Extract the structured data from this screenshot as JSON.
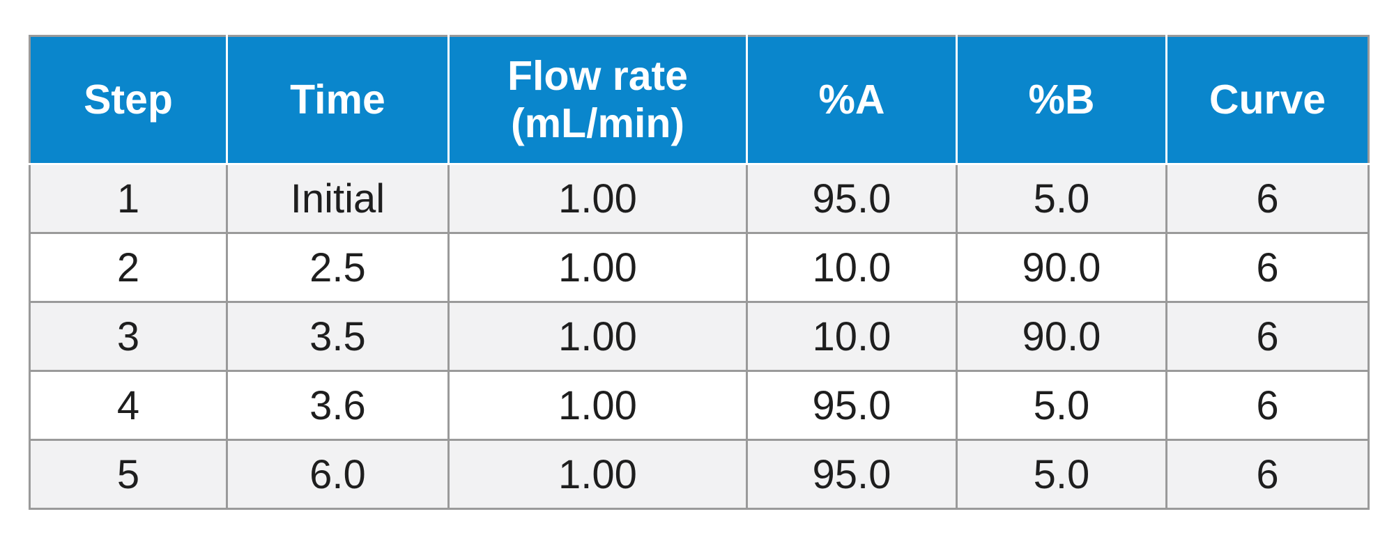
{
  "table": {
    "headers": [
      {
        "line1": "Step",
        "line2": ""
      },
      {
        "line1": "Time",
        "line2": ""
      },
      {
        "line1": "Flow rate",
        "line2": "(mL/min)"
      },
      {
        "line1": "%A",
        "line2": ""
      },
      {
        "line1": "%B",
        "line2": ""
      },
      {
        "line1": "Curve",
        "line2": ""
      }
    ],
    "rows": [
      [
        "1",
        "Initial",
        "1.00",
        "95.0",
        "5.0",
        "6"
      ],
      [
        "2",
        "2.5",
        "1.00",
        "10.0",
        "90.0",
        "6"
      ],
      [
        "3",
        "3.5",
        "1.00",
        "10.0",
        "90.0",
        "6"
      ],
      [
        "4",
        "3.6",
        "1.00",
        "95.0",
        "5.0",
        "6"
      ],
      [
        "5",
        "6.0",
        "1.00",
        "95.0",
        "5.0",
        "6"
      ]
    ]
  },
  "colors": {
    "header_bg": "#0a86cc",
    "header_text": "#ffffff",
    "row_alt_bg": "#f2f2f3",
    "border": "#9a9a9a"
  }
}
